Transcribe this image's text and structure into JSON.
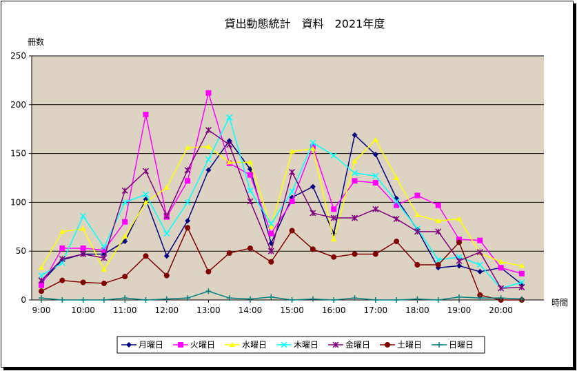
{
  "chart_data": {
    "type": "line",
    "title": "貸出動態統計　資料　2021年度",
    "ylabel": "冊数",
    "xlabel": "時間",
    "ylim": [
      0,
      250
    ],
    "yticks": [
      0,
      50,
      100,
      150,
      200,
      250
    ],
    "grid": true,
    "legend_position": "bottom",
    "x_tick_labels": [
      "9:00",
      "10:00",
      "11:00",
      "12:00",
      "13:00",
      "14:00",
      "15:00",
      "16:00",
      "17:00",
      "18:00",
      "19:00",
      "20:00"
    ],
    "x_tick_hours": [
      9,
      10,
      11,
      12,
      13,
      14,
      15,
      16,
      17,
      18,
      19,
      20
    ],
    "x": [
      9,
      9.5,
      10,
      10.5,
      11,
      11.5,
      12,
      12.5,
      13,
      13.5,
      14,
      14.5,
      15,
      15.5,
      16,
      16.5,
      17,
      17.5,
      18,
      18.5,
      19,
      19.5,
      20,
      20.5
    ],
    "series": [
      {
        "name": "月曜日",
        "color": "#000080",
        "marker": "diamond",
        "values": [
          18,
          41,
          47,
          47,
          60,
          103,
          45,
          81,
          133,
          163,
          134,
          58,
          105,
          116,
          68,
          169,
          149,
          104,
          72,
          33,
          35,
          29,
          33,
          16
        ]
      },
      {
        "name": "火曜日",
        "color": "#ff00ff",
        "marker": "square",
        "values": [
          15,
          53,
          53,
          51,
          80,
          190,
          85,
          122,
          212,
          140,
          128,
          68,
          101,
          157,
          93,
          122,
          120,
          97,
          107,
          97,
          62,
          61,
          33,
          27
        ]
      },
      {
        "name": "水曜日",
        "color": "#ffff00",
        "marker": "triangle",
        "values": [
          33,
          70,
          73,
          31,
          65,
          100,
          115,
          156,
          157,
          141,
          141,
          75,
          152,
          155,
          62,
          142,
          164,
          125,
          87,
          81,
          83,
          48,
          39,
          35
        ]
      },
      {
        "name": "木曜日",
        "color": "#00ffff",
        "marker": "x",
        "values": [
          25,
          38,
          86,
          54,
          100,
          108,
          68,
          100,
          144,
          187,
          112,
          78,
          111,
          161,
          148,
          130,
          127,
          101,
          73,
          41,
          44,
          36,
          12,
          18
        ]
      },
      {
        "name": "金曜日",
        "color": "#800080",
        "marker": "star",
        "values": [
          20,
          42,
          47,
          43,
          112,
          132,
          86,
          133,
          174,
          159,
          101,
          50,
          131,
          89,
          84,
          84,
          93,
          83,
          70,
          70,
          40,
          49,
          12,
          13
        ]
      },
      {
        "name": "土曜日",
        "color": "#800000",
        "marker": "circle",
        "values": [
          9,
          20,
          18,
          17,
          24,
          45,
          25,
          74,
          29,
          48,
          53,
          39,
          71,
          52,
          44,
          47,
          47,
          60,
          36,
          36,
          59,
          5,
          0,
          0
        ]
      },
      {
        "name": "日曜日",
        "color": "#008080",
        "marker": "plus",
        "values": [
          2,
          0,
          0,
          0,
          2,
          0,
          1,
          2,
          9,
          2,
          1,
          3,
          0,
          1,
          0,
          2,
          0,
          0,
          1,
          0,
          3,
          2,
          2,
          1
        ]
      }
    ]
  }
}
